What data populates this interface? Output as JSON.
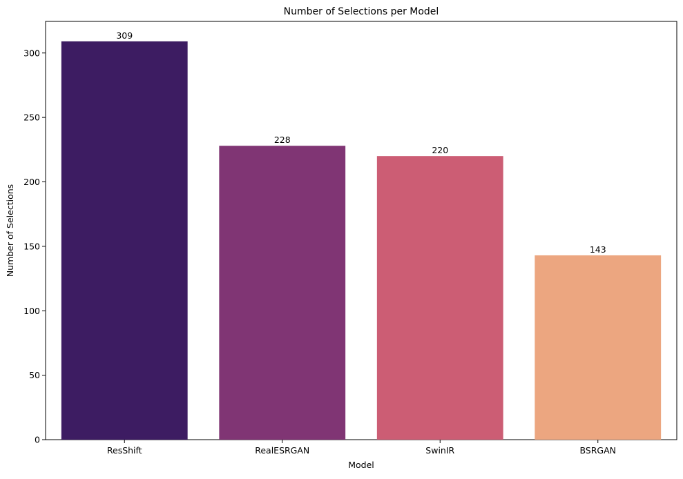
{
  "chart_data": {
    "type": "bar",
    "title": "Number of Selections per Model",
    "xlabel": "Model",
    "ylabel": "Number of Selections",
    "categories": [
      "ResShift",
      "RealESRGAN",
      "SwinIR",
      "BSRGAN"
    ],
    "values": [
      309,
      228,
      220,
      143
    ],
    "data_labels": [
      "309",
      "228",
      "220",
      "143"
    ],
    "colors": [
      "#3d1c62",
      "#803574",
      "#cc5d74",
      "#eca680"
    ],
    "ylim": [
      0,
      324.5
    ],
    "yticks": [
      0,
      50,
      100,
      150,
      200,
      250,
      300
    ],
    "grid": false,
    "legend": "none"
  }
}
